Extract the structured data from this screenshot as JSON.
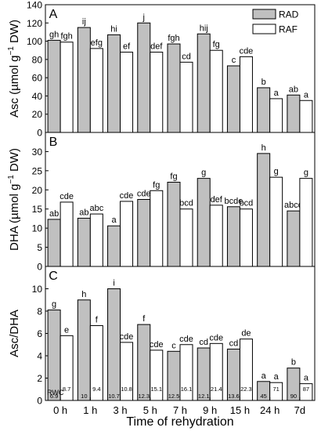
{
  "chart_data": {
    "type": "bar",
    "categories": [
      "0 h",
      "1 h",
      "3 h",
      "5 h",
      "7 h",
      "9 h",
      "15 h",
      "24 h",
      "7d"
    ],
    "xlabel": "Time of rehydration",
    "legend": {
      "placement": "top-right",
      "entries": [
        "RAD",
        "RAF"
      ]
    },
    "colors": {
      "RAD": "#c0c0c0",
      "RAF": "#ffffff",
      "stroke": "#000000"
    },
    "panels": [
      {
        "letter": "A",
        "ylabel_main": "Asc",
        "ylabel_unit_pre": "(µmol g",
        "ylabel_unit_sup": "−1",
        "ylabel_unit_post": " DW)",
        "ylim": [
          0,
          140
        ],
        "yticks": [
          "0",
          "20",
          "40",
          "60",
          "80",
          "100",
          "120",
          "140"
        ],
        "series": [
          {
            "name": "RAD",
            "values": [
              101,
              115,
              107,
              120,
              97,
              108,
              73,
              49,
              41
            ],
            "labels": [
              "gh",
              "ij",
              "hi",
              "j",
              "fgh",
              "hij",
              "c",
              "b",
              "ab"
            ]
          },
          {
            "name": "RAF",
            "values": [
              99,
              92,
              88,
              88,
              77,
              90,
              83,
              37,
              35
            ],
            "labels": [
              "fgh",
              "efg",
              "ef",
              "def",
              "cd",
              "fg",
              "cde",
              "a",
              "a"
            ]
          }
        ]
      },
      {
        "letter": "B",
        "ylabel_main": "DHA",
        "ylabel_unit_pre": "(µmol g",
        "ylabel_unit_sup": "−1",
        "ylabel_unit_post": " DW)",
        "ylim": [
          0,
          35
        ],
        "yticks": [
          "0",
          "5",
          "10",
          "15",
          "20",
          "25",
          "30"
        ],
        "series": [
          {
            "name": "RAD",
            "values": [
              12.3,
              12.6,
              10.6,
              17.5,
              22.0,
              23.0,
              15.6,
              29.5,
              14.5
            ],
            "labels": [
              "ab",
              "ab",
              "a",
              "cde",
              "fg",
              "g",
              "bcde",
              "h",
              "abcd"
            ]
          },
          {
            "name": "RAF",
            "values": [
              16.8,
              13.7,
              17.0,
              19.8,
              15.0,
              16.0,
              15.0,
              23.3,
              23.0
            ],
            "labels": [
              "cde",
              "abc",
              "cde",
              "fg",
              "bcd",
              "def",
              "bcd",
              "g",
              "g"
            ]
          }
        ]
      },
      {
        "letter": "C",
        "ylabel_main": "Asc/DHA",
        "ylim": [
          0,
          12
        ],
        "yticks": [
          "0",
          "2",
          "4",
          "6",
          "8",
          "10"
        ],
        "series": [
          {
            "name": "RAD",
            "values": [
              8.1,
              9.0,
              10.0,
              6.8,
              4.4,
              4.7,
              4.6,
              1.7,
              2.9
            ],
            "labels": [
              "g",
              "h",
              "i",
              "f",
              "c",
              "cd",
              "cd",
              "a",
              "b"
            ]
          },
          {
            "name": "RAF",
            "values": [
              5.8,
              6.7,
              5.2,
              4.5,
              5.0,
              5.1,
              5.5,
              1.6,
              1.5
            ],
            "labels": [
              "e",
              "f",
              "cde",
              "cde",
              "cde",
              "cde",
              "de",
              "a",
              "a"
            ]
          }
        ],
        "rwc_label": "RWC",
        "rwc": {
          "RAD": [
            "6.9",
            "10",
            "10.7",
            "12.3",
            "12.5",
            "12.1",
            "13.6",
            "45",
            "90"
          ],
          "RAF": [
            "8.7",
            "9.4",
            "10.8",
            "15.1",
            "16.1",
            "21.4",
            "22.3",
            "71",
            "87"
          ]
        }
      }
    ]
  }
}
